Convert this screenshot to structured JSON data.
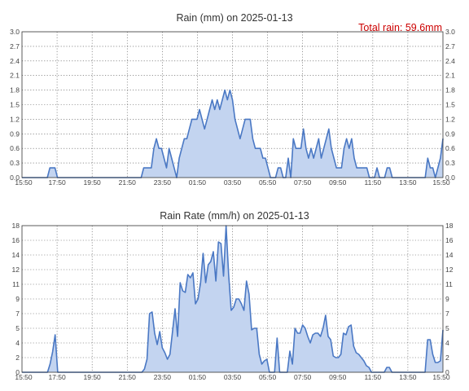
{
  "chart_data": [
    {
      "type": "area",
      "title": "Rain (mm) on 2025-01-13",
      "annotation": "Total rain: 59.6mm",
      "xlabel": "",
      "ylabel": "",
      "x_tick_labels": [
        "15:50",
        "17:50",
        "19:50",
        "21:50",
        "23:50",
        "01:50",
        "03:50",
        "05:50",
        "07:50",
        "09:50",
        "11:50",
        "13:50",
        "15:50"
      ],
      "y_tick_labels": [
        "0.0",
        "0.3",
        "0.6",
        "0.9",
        "1.2",
        "1.5",
        "1.8",
        "2.1",
        "2.4",
        "2.7",
        "3.0"
      ],
      "ylim": [
        0,
        3.0
      ],
      "grid": true,
      "series_color": "#4a78c4",
      "values": [
        0,
        0,
        0,
        0,
        0,
        0,
        0,
        0,
        0,
        0,
        0,
        0.2,
        0.2,
        0.2,
        0,
        0,
        0,
        0,
        0,
        0,
        0,
        0,
        0,
        0,
        0,
        0,
        0,
        0,
        0,
        0,
        0,
        0,
        0,
        0,
        0,
        0,
        0,
        0,
        0,
        0,
        0,
        0,
        0,
        0,
        0,
        0,
        0,
        0,
        0.2,
        0.2,
        0.2,
        0.2,
        0.6,
        0.8,
        0.6,
        0.6,
        0.4,
        0.2,
        0.6,
        0.4,
        0.2,
        0,
        0.4,
        0.6,
        0.8,
        0.8,
        1.0,
        1.2,
        1.2,
        1.2,
        1.4,
        1.2,
        1.0,
        1.2,
        1.4,
        1.6,
        1.4,
        1.6,
        1.4,
        1.6,
        1.8,
        1.6,
        1.8,
        1.6,
        1.2,
        1.0,
        0.8,
        1.0,
        1.2,
        1.2,
        1.2,
        0.8,
        0.6,
        0.6,
        0.6,
        0.4,
        0.4,
        0.2,
        0,
        0,
        0,
        0.2,
        0.2,
        0,
        0,
        0.4,
        0,
        0.8,
        0.6,
        0.6,
        0.6,
        1.0,
        0.6,
        0.4,
        0.6,
        0.4,
        0.6,
        0.8,
        0.4,
        0.6,
        0.8,
        1.0,
        0.6,
        0.4,
        0.2,
        0.2,
        0.2,
        0.6,
        0.8,
        0.6,
        0.8,
        0.4,
        0.2,
        0.2,
        0.2,
        0.2,
        0.2,
        0,
        0,
        0,
        0.2,
        0,
        0,
        0,
        0.2,
        0.2,
        0,
        0,
        0,
        0,
        0,
        0,
        0,
        0,
        0,
        0,
        0,
        0,
        0,
        0,
        0.4,
        0.2,
        0.2,
        0,
        0.2,
        0.4,
        0.8
      ]
    },
    {
      "type": "area",
      "title": "Rain Rate (mm/h) on 2025-01-13",
      "xlabel": "",
      "ylabel": "",
      "x_tick_labels": [
        "15:50",
        "17:50",
        "19:50",
        "21:50",
        "23:50",
        "01:50",
        "03:50",
        "05:50",
        "07:50",
        "09:50",
        "11:50",
        "13:50",
        "15:50"
      ],
      "y_tick_labels": [
        "0",
        "2",
        "4",
        "5",
        "7",
        "9",
        "11",
        "12",
        "14",
        "16",
        "18"
      ],
      "ylim": [
        0,
        18
      ],
      "grid": true,
      "series_color": "#4a78c4",
      "values": [
        0,
        0,
        0,
        0,
        0,
        0,
        0,
        0,
        0,
        0,
        0,
        1,
        2.5,
        4.6,
        0,
        0,
        0,
        0,
        0,
        0,
        0,
        0,
        0,
        0,
        0,
        0,
        0,
        0,
        0,
        0,
        0,
        0,
        0,
        0,
        0,
        0,
        0,
        0,
        0,
        0,
        0,
        0,
        0,
        0,
        0,
        0,
        0,
        0,
        0.4,
        1.6,
        7.2,
        7.4,
        4.8,
        3.4,
        5.0,
        3.0,
        2.4,
        1.6,
        2.2,
        5.0,
        7.8,
        4.4,
        11,
        10,
        9.8,
        12,
        11.6,
        12.2,
        8.4,
        9.0,
        11,
        14.6,
        11,
        13.2,
        13.6,
        14.8,
        11.2,
        16,
        15.8,
        11.8,
        18,
        12,
        7.6,
        8.0,
        9.0,
        9.0,
        8.4,
        7.6,
        11.2,
        9.6,
        5.2,
        5.4,
        5.4,
        2.2,
        1.0,
        1.4,
        1.6,
        0,
        0,
        0,
        4.2,
        0,
        0,
        0,
        0,
        2.6,
        1.0,
        5.4,
        4.8,
        4.8,
        5.8,
        5.4,
        4.4,
        3.6,
        4.6,
        4.8,
        4.8,
        4.4,
        5.4,
        7.0,
        4.4,
        4.0,
        2.0,
        1.8,
        1.8,
        2.2,
        4.8,
        4.6,
        5.6,
        5.8,
        3.2,
        2.4,
        2.2,
        1.8,
        1.4,
        0.8,
        0.6,
        0,
        0,
        0,
        0,
        0,
        0,
        0.6,
        0.6,
        0,
        0,
        0,
        0,
        0,
        0,
        0,
        0,
        0,
        0,
        0,
        0,
        0,
        0,
        4.0,
        4.0,
        2.2,
        1.2,
        1.2,
        1.4,
        5.2
      ]
    }
  ]
}
